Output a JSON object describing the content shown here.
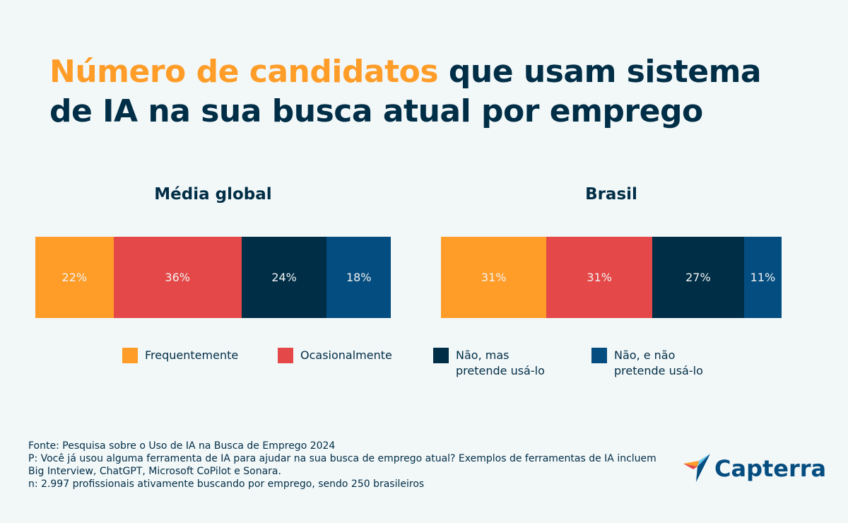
{
  "title": {
    "highlight": "Número de candidatos",
    "rest": " que usam sistema de IA na sua busca atual por emprego"
  },
  "chart_data": [
    {
      "type": "bar",
      "stacked": true,
      "orientation": "horizontal",
      "title": "Média global",
      "categories": [
        "Frequentemente",
        "Ocasionalmente",
        "Não, mas pretende usá-lo",
        "Não, e não pretende usá-lo"
      ],
      "values": [
        22,
        36,
        24,
        18
      ],
      "labels": [
        "22%",
        "36%",
        "24%",
        "18%"
      ]
    },
    {
      "type": "bar",
      "stacked": true,
      "orientation": "horizontal",
      "title": "Brasil",
      "categories": [
        "Frequentemente",
        "Ocasionalmente",
        "Não, mas pretende usá-lo",
        "Não, e não pretende usá-lo"
      ],
      "values": [
        31,
        31,
        27,
        11
      ],
      "labels": [
        "31%",
        "31%",
        "27%",
        "11%"
      ]
    }
  ],
  "colors": [
    "#FF9D28",
    "#E54848",
    "#002E47",
    "#044D80"
  ],
  "legend": [
    {
      "label": "Frequentemente"
    },
    {
      "label": "Ocasionalmente"
    },
    {
      "line1": "Não, mas",
      "line2": "pretende usá-lo"
    },
    {
      "line1": "Não, e não",
      "line2": "pretende usá-lo"
    }
  ],
  "footnote": [
    "Fonte: Pesquisa sobre o Uso de IA na Busca de Emprego 2024",
    "P: Você já usou alguma ferramenta de IA para ajudar na sua busca de emprego atual? Exemplos de ferramentas de IA incluem Big Interview, ChatGPT, Microsoft CoPilot e Sonara.",
    "n: 2.997 profissionais ativamente buscando por emprego, sendo 250 brasileiros"
  ],
  "logo": {
    "text": "Capterra"
  }
}
